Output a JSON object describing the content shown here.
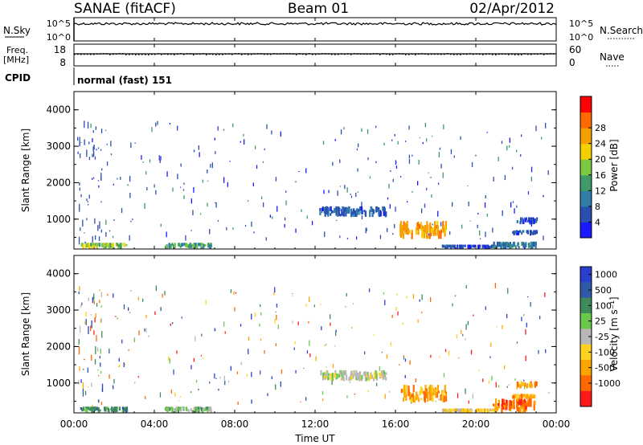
{
  "header": {
    "station": "SANAE (fitACF)",
    "beam": "Beam 01",
    "date": "02/Apr/2012"
  },
  "top_panels": {
    "nsky_label": "N.Sky",
    "nsearch_label": "N.Search",
    "nsky_ticks": [
      "10^5",
      "10^0"
    ],
    "nsearch_ticks": [
      "10^5",
      "10^0"
    ],
    "freq_label": "Freq.",
    "freq_unit": "[MHz]",
    "freq_ticks": [
      "18",
      "8"
    ],
    "nave_label": "Nave",
    "nave_ticks": [
      "60",
      "0"
    ],
    "cpid_label": "CPID",
    "cpid_value": "normal (fast) 151"
  },
  "x_axis": {
    "label": "Time UT",
    "ticks": [
      "00:00",
      "04:00",
      "08:00",
      "12:00",
      "16:00",
      "20:00",
      "00:00"
    ],
    "range_hours": [
      0,
      24
    ]
  },
  "colors": {
    "power": [
      "#1a1aff",
      "#2a4fb0",
      "#2e7ea8",
      "#3f9a6a",
      "#7ac943",
      "#f5d000",
      "#f5a000",
      "#ff6a00",
      "#ff0000"
    ],
    "velocity": [
      "#2a3fd0",
      "#2e5aa8",
      "#3f8a5a",
      "#6ac84a",
      "#b8b8b8",
      "#ffd21e",
      "#ffa500",
      "#ff6a00",
      "#ff1a1a"
    ]
  },
  "chart_data": [
    {
      "type": "heatmap",
      "name": "power-panel",
      "ylabel": "Slant Range [km]",
      "yticks": [
        "1000",
        "2000",
        "3000",
        "4000"
      ],
      "ylim": [
        180,
        4500
      ],
      "xlim": [
        0,
        24
      ],
      "colorbar_label": "Power [dB]",
      "colorbar_ticks": [
        "4",
        "8",
        "12",
        "16",
        "20",
        "24",
        "28"
      ],
      "features": [
        {
          "t0": 0.3,
          "t1": 2.6,
          "r0": 180,
          "r1": 350,
          "level": 4
        },
        {
          "t0": 4.5,
          "t1": 6.8,
          "r0": 180,
          "r1": 350,
          "level": 3
        },
        {
          "t0": 12.2,
          "t1": 15.5,
          "r0": 1050,
          "r1": 1350,
          "level": 1
        },
        {
          "t0": 16.2,
          "t1": 18.5,
          "r0": 450,
          "r1": 950,
          "level": 6
        },
        {
          "t0": 18.3,
          "t1": 21.0,
          "r0": 180,
          "r1": 300,
          "level": 1
        },
        {
          "t0": 20.8,
          "t1": 23.0,
          "r0": 180,
          "r1": 380,
          "level": 2
        },
        {
          "t0": 21.8,
          "t1": 23.0,
          "r0": 550,
          "r1": 700,
          "level": 1
        },
        {
          "t0": 22.0,
          "t1": 23.0,
          "r0": 850,
          "r1": 1050,
          "level": 1
        }
      ]
    },
    {
      "type": "heatmap",
      "name": "velocity-panel",
      "ylabel": "Slant Range [km]",
      "yticks": [
        "1000",
        "2000",
        "3000",
        "4000"
      ],
      "ylim": [
        180,
        4500
      ],
      "xlim": [
        0,
        24
      ],
      "colorbar_label": "Velocity [m s⁻¹]",
      "colorbar_ticks": [
        "1000",
        "500",
        "100",
        "25",
        "-25",
        "-100",
        "-500",
        "-1000"
      ],
      "features": [
        {
          "t0": 0.3,
          "t1": 2.6,
          "r0": 180,
          "r1": 350,
          "level": 2
        },
        {
          "t0": 4.5,
          "t1": 6.8,
          "r0": 180,
          "r1": 350,
          "level": 3
        },
        {
          "t0": 12.2,
          "t1": 15.5,
          "r0": 1050,
          "r1": 1350,
          "level": 4
        },
        {
          "t0": 16.2,
          "t1": 18.5,
          "r0": 450,
          "r1": 950,
          "level": 6
        },
        {
          "t0": 18.3,
          "t1": 21.0,
          "r0": 180,
          "r1": 300,
          "level": 5
        },
        {
          "t0": 20.8,
          "t1": 23.0,
          "r0": 180,
          "r1": 600,
          "level": 7
        },
        {
          "t0": 21.8,
          "t1": 23.0,
          "r0": 550,
          "r1": 700,
          "level": 6
        },
        {
          "t0": 22.0,
          "t1": 23.0,
          "r0": 850,
          "r1": 1050,
          "level": 6
        }
      ]
    }
  ]
}
